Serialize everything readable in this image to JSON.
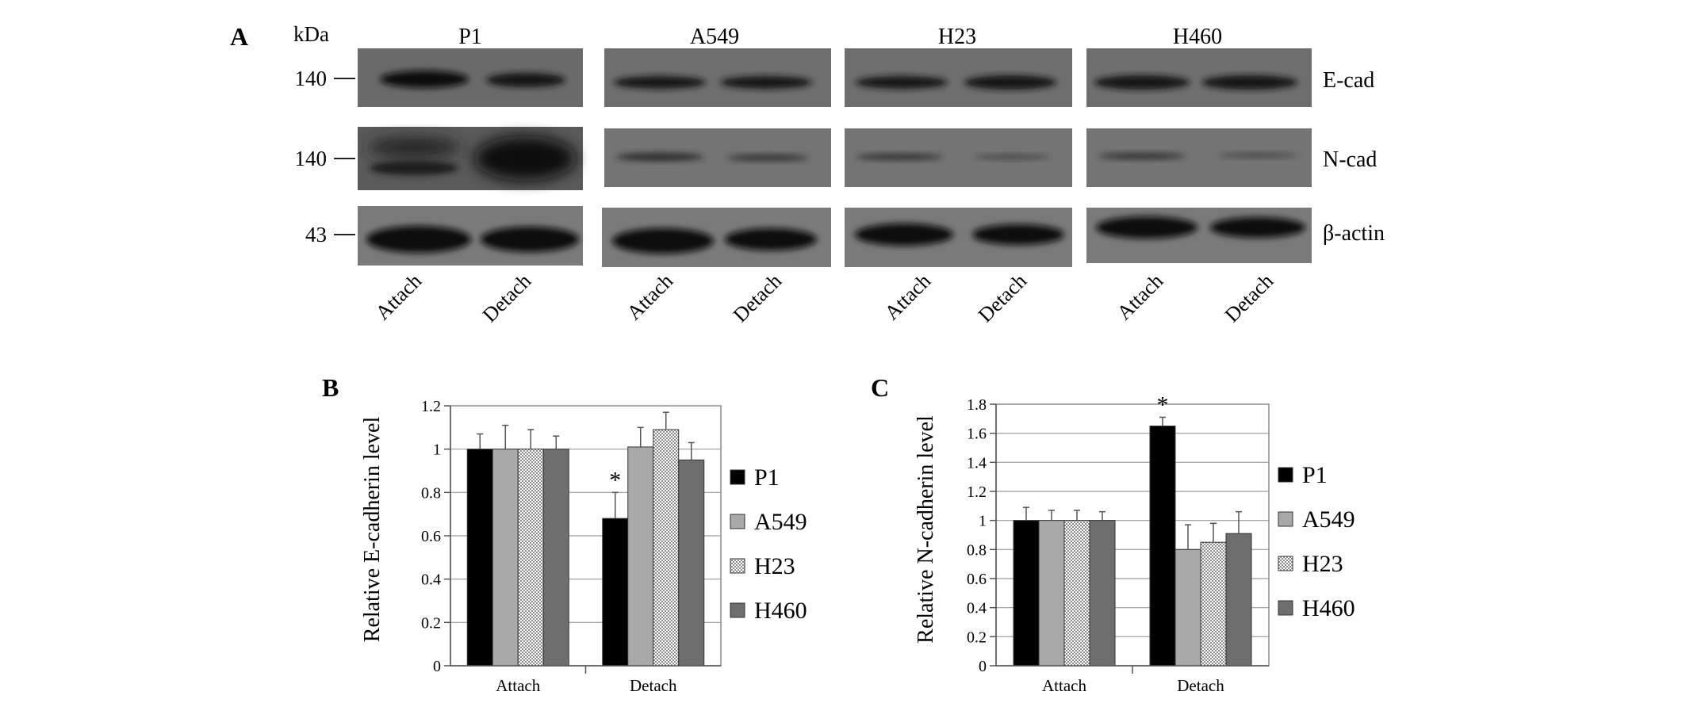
{
  "panel_a": {
    "letter": "A",
    "unit_label": "kDa",
    "groups": [
      "P1",
      "A549",
      "H23",
      "H460"
    ],
    "lanes": [
      "Attach",
      "Detach"
    ],
    "rows": [
      {
        "protein": "E-cad",
        "marker": "140"
      },
      {
        "protein": "N-cad",
        "marker": "140"
      },
      {
        "protein": "β-actin",
        "marker": "43"
      }
    ]
  },
  "chart_data": [
    {
      "type": "bar",
      "panel": "B",
      "ylabel": "Relative E-cadherin level",
      "xlabel": "",
      "categories": [
        "Attach",
        "Detach"
      ],
      "ylim": [
        0,
        1.2
      ],
      "yticks": [
        "0",
        "0.2",
        "0.4",
        "0.6",
        "0.8",
        "1",
        "1.2"
      ],
      "grid": true,
      "legend": "right",
      "series": [
        {
          "name": "P1",
          "values": [
            1.0,
            0.68
          ],
          "errors": [
            0.07,
            0.12
          ],
          "color": "#000000",
          "pattern": "solid"
        },
        {
          "name": "A549",
          "values": [
            1.0,
            1.01
          ],
          "errors": [
            0.11,
            0.09
          ],
          "color": "#a9a9a9",
          "pattern": "solid"
        },
        {
          "name": "H23",
          "values": [
            1.0,
            1.09
          ],
          "errors": [
            0.09,
            0.08
          ],
          "color": "#d9d9d9",
          "pattern": "checker"
        },
        {
          "name": "H460",
          "values": [
            1.0,
            0.95
          ],
          "errors": [
            0.06,
            0.08
          ],
          "color": "#6e6e6e",
          "pattern": "solid"
        }
      ],
      "annotations": [
        {
          "series": "P1",
          "category": "Detach",
          "text": "*"
        }
      ]
    },
    {
      "type": "bar",
      "panel": "C",
      "ylabel": "Relative N-cadherin level",
      "xlabel": "",
      "categories": [
        "Attach",
        "Detach"
      ],
      "ylim": [
        0,
        1.8
      ],
      "yticks": [
        "0",
        "0.2",
        "0.4",
        "0.6",
        "0.8",
        "1",
        "1.2",
        "1.4",
        "1.6",
        "1.8"
      ],
      "grid": true,
      "legend": "right",
      "series": [
        {
          "name": "P1",
          "values": [
            1.0,
            1.65
          ],
          "errors": [
            0.09,
            0.06
          ],
          "color": "#000000",
          "pattern": "solid"
        },
        {
          "name": "A549",
          "values": [
            1.0,
            0.8
          ],
          "errors": [
            0.07,
            0.17
          ],
          "color": "#a9a9a9",
          "pattern": "solid"
        },
        {
          "name": "H23",
          "values": [
            1.0,
            0.85
          ],
          "errors": [
            0.07,
            0.13
          ],
          "color": "#d9d9d9",
          "pattern": "checker"
        },
        {
          "name": "H460",
          "values": [
            1.0,
            0.91
          ],
          "errors": [
            0.06,
            0.15
          ],
          "color": "#6e6e6e",
          "pattern": "solid"
        }
      ],
      "annotations": [
        {
          "series": "P1",
          "category": "Detach",
          "text": "*"
        }
      ]
    }
  ]
}
